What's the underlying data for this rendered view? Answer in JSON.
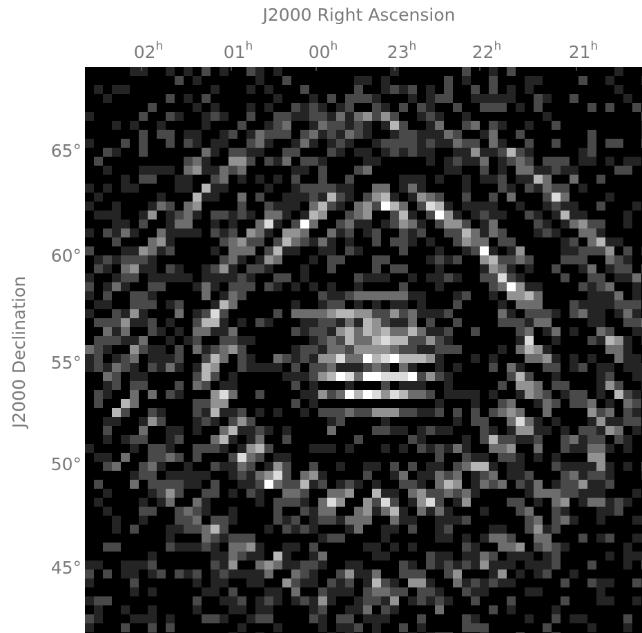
{
  "title": "J2000 Right Ascension",
  "y_label": "J2000 Declination",
  "x_ticks": [
    {
      "text": "02",
      "sup": "h"
    },
    {
      "text": "01",
      "sup": "h"
    },
    {
      "text": "00",
      "sup": "h"
    },
    {
      "text": "23",
      "sup": "h"
    },
    {
      "text": "22",
      "sup": "h"
    },
    {
      "text": "21",
      "sup": "h"
    }
  ],
  "y_ticks": [
    "65°",
    "60°",
    "55°",
    "50°",
    "45°"
  ]
}
